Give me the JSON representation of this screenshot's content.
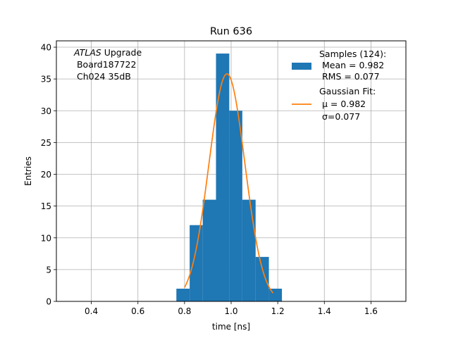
{
  "chart_data": {
    "type": "bar",
    "title": "Run 636",
    "xlabel": "time [ns]",
    "ylabel": "Entries",
    "xlim": [
      0.25,
      1.75
    ],
    "ylim": [
      0,
      41
    ],
    "xticks": [
      "0.4",
      "0.6",
      "0.8",
      "1.0",
      "1.2",
      "1.4",
      "1.6"
    ],
    "xtick_values": [
      0.4,
      0.6,
      0.8,
      1.0,
      1.2,
      1.4,
      1.6
    ],
    "yticks": [
      "0",
      "5",
      "10",
      "15",
      "20",
      "25",
      "30",
      "35",
      "40"
    ],
    "ytick_values": [
      0,
      5,
      10,
      15,
      20,
      25,
      30,
      35,
      40
    ],
    "grid": true,
    "bin_edges": [
      0.765,
      0.822,
      0.878,
      0.935,
      0.992,
      1.048,
      1.105,
      1.162,
      1.218
    ],
    "counts": [
      2,
      12,
      16,
      39,
      30,
      16,
      7,
      2
    ],
    "gaussian": {
      "mu": 0.982,
      "sigma": 0.077,
      "amplitude": 35.8,
      "x_range": [
        0.8,
        1.18
      ]
    },
    "annotation": {
      "italic": "ATLAS",
      "rest": " Upgrade",
      "line2": " Board187722",
      "line3": " Ch024 35dB"
    },
    "legend": {
      "position": "top-right",
      "hist_lines": [
        "Samples (124):",
        " Mean = 0.982",
        " RMS = 0.077"
      ],
      "fit_lines": [
        "Gaussian Fit:",
        " μ = 0.982",
        " σ=0.077"
      ]
    },
    "colors": {
      "hist": "#1f77b4",
      "fit": "#ff7f0e",
      "grid": "#b0b0b0"
    }
  }
}
